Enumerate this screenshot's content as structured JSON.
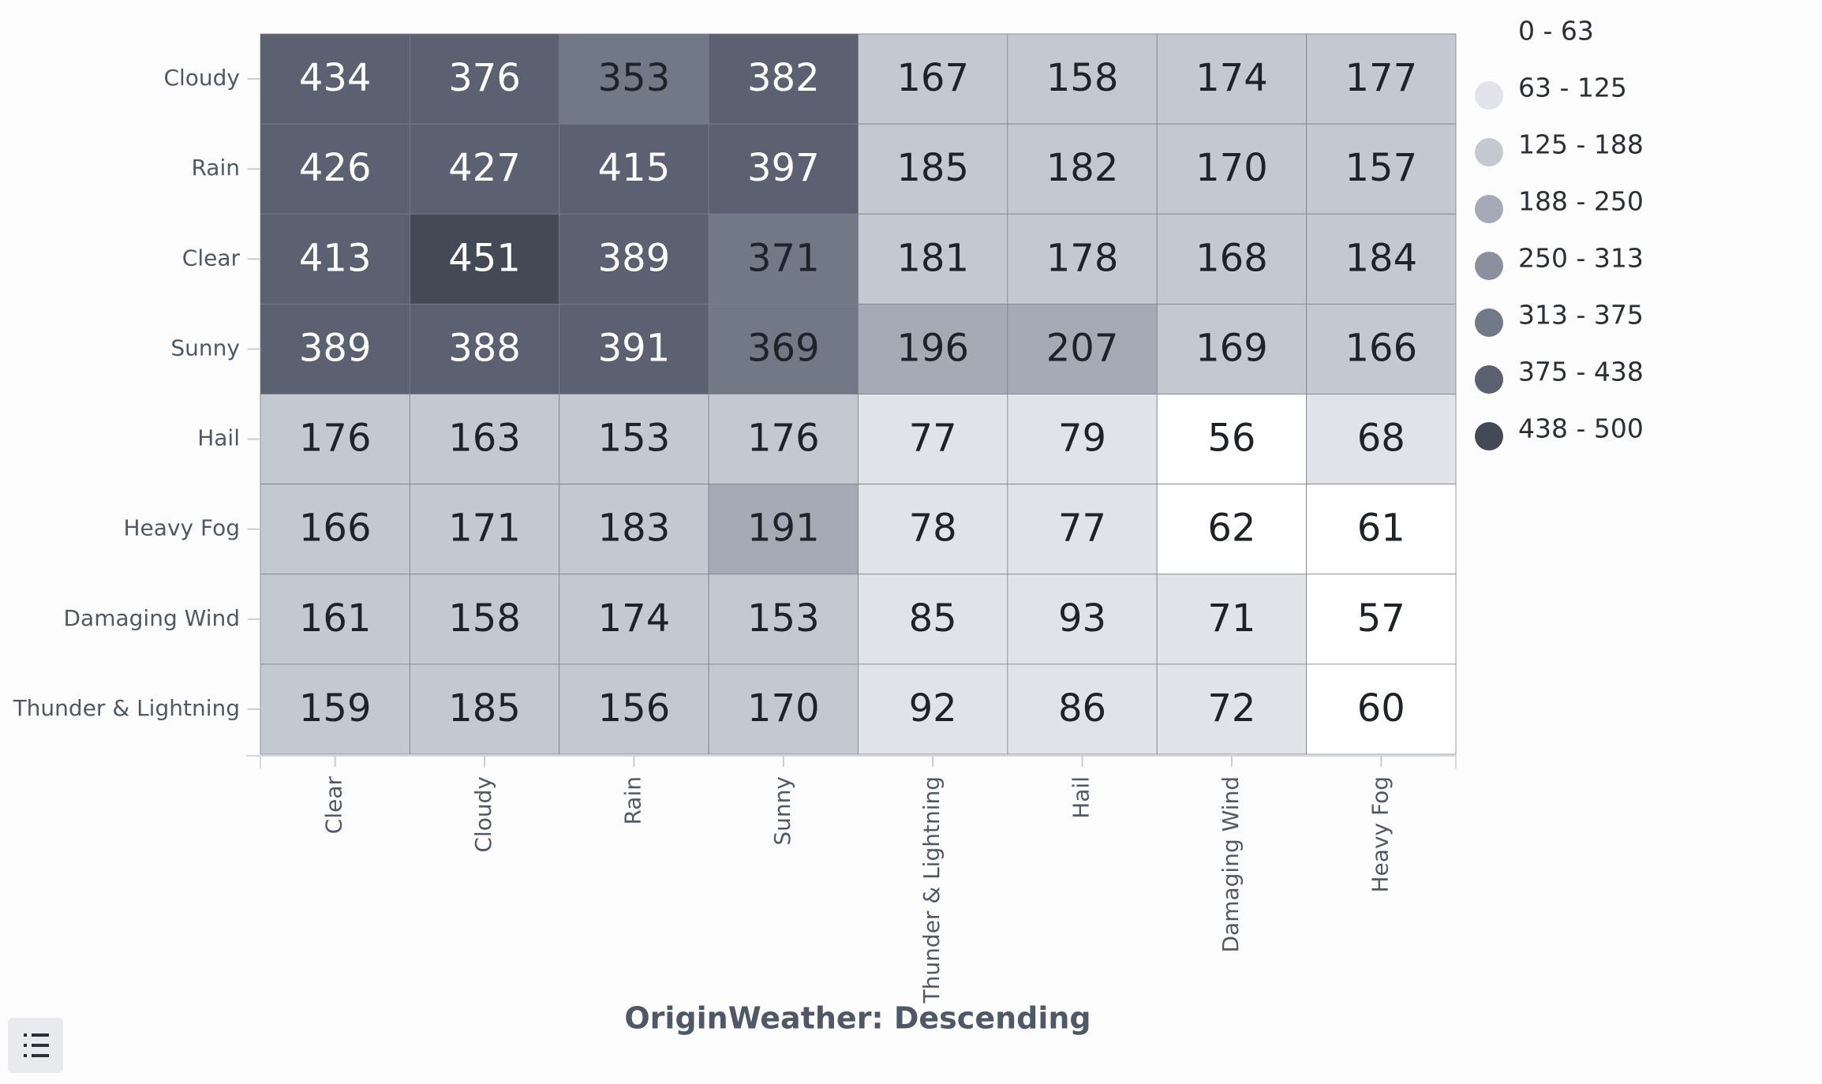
{
  "chart_data": {
    "type": "heatmap",
    "x_label": "OriginWeather: Descending",
    "x_categories": [
      "Clear",
      "Cloudy",
      "Rain",
      "Sunny",
      "Thunder & Lightning",
      "Hail",
      "Damaging Wind",
      "Heavy Fog"
    ],
    "y_categories": [
      "Cloudy",
      "Rain",
      "Clear",
      "Sunny",
      "Hail",
      "Heavy Fog",
      "Damaging Wind",
      "Thunder & Lightning"
    ],
    "z": [
      [
        434,
        376,
        353,
        382,
        167,
        158,
        174,
        177
      ],
      [
        426,
        427,
        415,
        397,
        185,
        182,
        170,
        157
      ],
      [
        413,
        451,
        389,
        371,
        181,
        178,
        168,
        184
      ],
      [
        389,
        388,
        391,
        369,
        196,
        207,
        169,
        166
      ],
      [
        176,
        163,
        153,
        176,
        77,
        79,
        56,
        68
      ],
      [
        166,
        171,
        183,
        191,
        78,
        77,
        62,
        61
      ],
      [
        161,
        158,
        174,
        153,
        85,
        93,
        71,
        57
      ],
      [
        159,
        185,
        156,
        170,
        92,
        86,
        72,
        60
      ]
    ],
    "color_scale": [
      {
        "label": "0 - 63",
        "min": 0,
        "max": 63,
        "color": "#ffffff",
        "text_color": "#1f2229"
      },
      {
        "label": "63 - 125",
        "min": 63,
        "max": 125,
        "color": "#e1e3e8",
        "text_color": "#1f2229"
      },
      {
        "label": "125 - 188",
        "min": 125,
        "max": 188,
        "color": "#c4c8d1",
        "text_color": "#1f2229"
      },
      {
        "label": "188 - 250",
        "min": 188,
        "max": 250,
        "color": "#a5aab6",
        "text_color": "#1f2229"
      },
      {
        "label": "250 - 313",
        "min": 250,
        "max": 313,
        "color": "#8a909d",
        "text_color": "#1f2229"
      },
      {
        "label": "313 - 375",
        "min": 313,
        "max": 375,
        "color": "#727986",
        "text_color": "#1f2229"
      },
      {
        "label": "375 - 438",
        "min": 375,
        "max": 438,
        "color": "#5b6170",
        "text_color": "#ffffff"
      },
      {
        "label": "438 - 500",
        "min": 438,
        "max": 500,
        "color": "#434955",
        "text_color": "#ffffff"
      }
    ]
  }
}
